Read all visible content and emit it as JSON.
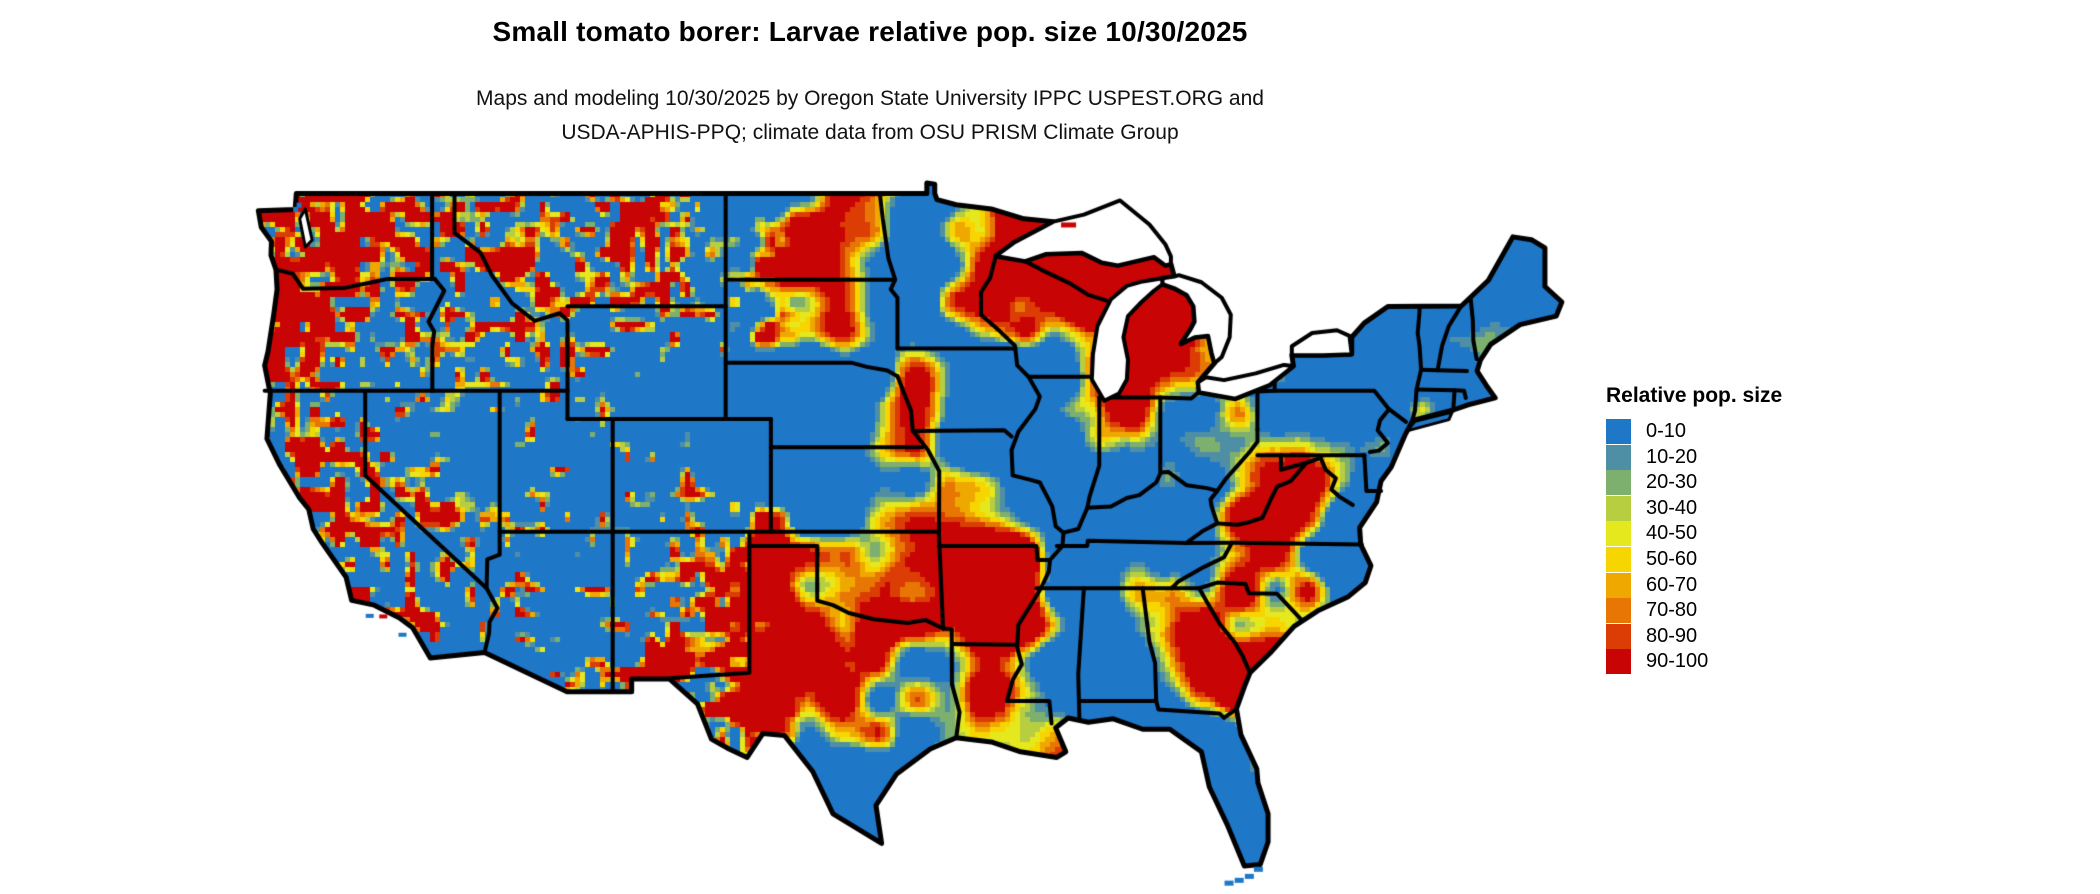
{
  "title": "Small tomato borer: Larvae relative pop. size 10/30/2025",
  "subtitle_line1": "Maps and modeling 10/30/2025 by Oregon State University IPPC USPEST.ORG and",
  "subtitle_line2": "USDA-APHIS-PPQ; climate data from OSU PRISM Climate Group",
  "legend": {
    "title": "Relative pop. size",
    "entries": [
      {
        "label": "0-10",
        "color": "#1F77C8"
      },
      {
        "label": "10-20",
        "color": "#4E8FA5"
      },
      {
        "label": "20-30",
        "color": "#7DAF6E"
      },
      {
        "label": "30-40",
        "color": "#B8CE41"
      },
      {
        "label": "40-50",
        "color": "#E6E81E"
      },
      {
        "label": "50-60",
        "color": "#F7D500"
      },
      {
        "label": "60-70",
        "color": "#EFA800"
      },
      {
        "label": "70-80",
        "color": "#E87604"
      },
      {
        "label": "80-90",
        "color": "#DB3D04"
      },
      {
        "label": "90-100",
        "color": "#C90404"
      }
    ]
  },
  "map": {
    "region": "Conterminous United States",
    "background_color": "#FFFFFF",
    "water_color": "#FFFFFF",
    "border_color": "#000000"
  }
}
